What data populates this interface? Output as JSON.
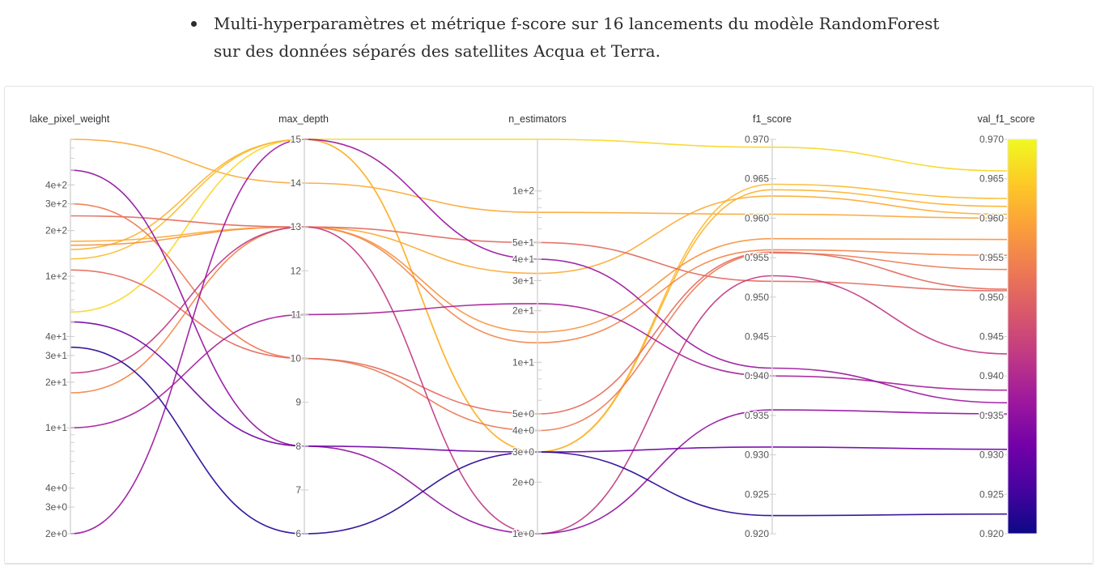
{
  "header": {
    "bullet_line1": "Multi-hyperparamètres et métrique f-score sur 16 lancements du modèle RandomForest",
    "bullet_line2": "sur des données séparés des satellites Acqua et Terra."
  },
  "chart_data": {
    "type": "parallel-coordinates",
    "axes": [
      {
        "name": "lake_pixel_weight",
        "scale": "log",
        "range": [
          2,
          800
        ],
        "tick_labels": [
          "4e+2",
          "3e+2",
          "2e+2",
          "1e+2",
          "4e+1",
          "3e+1",
          "2e+1",
          "1e+1",
          "4e+0",
          "3e+0",
          "2e+0"
        ],
        "tick_values": [
          400,
          300,
          200,
          100,
          40,
          30,
          20,
          10,
          4,
          3,
          2
        ]
      },
      {
        "name": "max_depth",
        "scale": "linear",
        "range": [
          6,
          15
        ],
        "tick_labels": [
          "15",
          "14",
          "13",
          "12",
          "11",
          "10",
          "9",
          "8",
          "7",
          "6"
        ],
        "tick_values": [
          15,
          14,
          13,
          12,
          11,
          10,
          9,
          8,
          7,
          6
        ]
      },
      {
        "name": "n_estimators",
        "scale": "log",
        "range": [
          1,
          200
        ],
        "tick_labels": [
          "1e+2",
          "5e+1",
          "4e+1",
          "3e+1",
          "2e+1",
          "1e+1",
          "5e+0",
          "4e+0",
          "3e+0",
          "2e+0",
          "1e+0"
        ],
        "tick_values": [
          100,
          50,
          40,
          30,
          20,
          10,
          5,
          4,
          3,
          2,
          1
        ]
      },
      {
        "name": "f1_score",
        "scale": "linear",
        "range": [
          0.92,
          0.97
        ],
        "tick_labels": [
          "0.970",
          "0.965",
          "0.960",
          "0.955",
          "0.950",
          "0.945",
          "0.940",
          "0.935",
          "0.930",
          "0.925",
          "0.920"
        ],
        "tick_values": [
          0.97,
          0.965,
          0.96,
          0.955,
          0.95,
          0.945,
          0.94,
          0.935,
          0.93,
          0.925,
          0.92
        ]
      },
      {
        "name": "val_f1_score",
        "scale": "linear",
        "range": [
          0.92,
          0.97
        ],
        "tick_labels": [
          "0.970",
          "0.965",
          "0.960",
          "0.955",
          "0.950",
          "0.945",
          "0.940",
          "0.935",
          "0.930",
          "0.925",
          "0.920"
        ],
        "tick_values": [
          0.97,
          0.965,
          0.96,
          0.955,
          0.95,
          0.945,
          0.94,
          0.935,
          0.93,
          0.925,
          0.92
        ]
      }
    ],
    "colorbar": {
      "metric": "val_f1_score",
      "range": [
        0.92,
        0.97
      ],
      "colors": [
        "#0d0887",
        "#46039f",
        "#7201a8",
        "#9c179e",
        "#bd3786",
        "#d8576b",
        "#ed7953",
        "#fb9f3a",
        "#fdca26",
        "#f0f921"
      ]
    },
    "runs": [
      {
        "lake_pixel_weight": 800,
        "max_depth": 14,
        "n_estimators": 75,
        "f1_score": 0.9605,
        "val_f1_score": 0.96
      },
      {
        "lake_pixel_weight": 58,
        "max_depth": 15,
        "n_estimators": 200,
        "f1_score": 0.969,
        "val_f1_score": 0.966
      },
      {
        "lake_pixel_weight": 130,
        "max_depth": 15,
        "n_estimators": 3,
        "f1_score": 0.9643,
        "val_f1_score": 0.9625
      },
      {
        "lake_pixel_weight": 150,
        "max_depth": 15,
        "n_estimators": 3,
        "f1_score": 0.9636,
        "val_f1_score": 0.9615
      },
      {
        "lake_pixel_weight": 170,
        "max_depth": 13,
        "n_estimators": 33,
        "f1_score": 0.9628,
        "val_f1_score": 0.9605
      },
      {
        "lake_pixel_weight": 160,
        "max_depth": 13,
        "n_estimators": 15,
        "f1_score": 0.9574,
        "val_f1_score": 0.9573
      },
      {
        "lake_pixel_weight": 250,
        "max_depth": 13,
        "n_estimators": 50,
        "f1_score": 0.952,
        "val_f1_score": 0.9508
      },
      {
        "lake_pixel_weight": 17,
        "max_depth": 13,
        "n_estimators": 13,
        "f1_score": 0.956,
        "val_f1_score": 0.9553
      },
      {
        "lake_pixel_weight": 300,
        "max_depth": 10,
        "n_estimators": 4,
        "f1_score": 0.9556,
        "val_f1_score": 0.9535
      },
      {
        "lake_pixel_weight": 110,
        "max_depth": 10,
        "n_estimators": 5,
        "f1_score": 0.9557,
        "val_f1_score": 0.951
      },
      {
        "lake_pixel_weight": 23,
        "max_depth": 13,
        "n_estimators": 1,
        "f1_score": 0.9527,
        "val_f1_score": 0.9428
      },
      {
        "lake_pixel_weight": 500,
        "max_depth": 8,
        "n_estimators": 1,
        "f1_score": 0.9357,
        "val_f1_score": 0.9352
      },
      {
        "lake_pixel_weight": 10,
        "max_depth": 11,
        "n_estimators": 22,
        "f1_score": 0.94,
        "val_f1_score": 0.9382
      },
      {
        "lake_pixel_weight": 2,
        "max_depth": 15,
        "n_estimators": 40,
        "f1_score": 0.941,
        "val_f1_score": 0.9366
      },
      {
        "lake_pixel_weight": 50,
        "max_depth": 8,
        "n_estimators": 3,
        "f1_score": 0.931,
        "val_f1_score": 0.9307
      },
      {
        "lake_pixel_weight": 34,
        "max_depth": 6,
        "n_estimators": 3,
        "f1_score": 0.9223,
        "val_f1_score": 0.9225
      }
    ]
  }
}
